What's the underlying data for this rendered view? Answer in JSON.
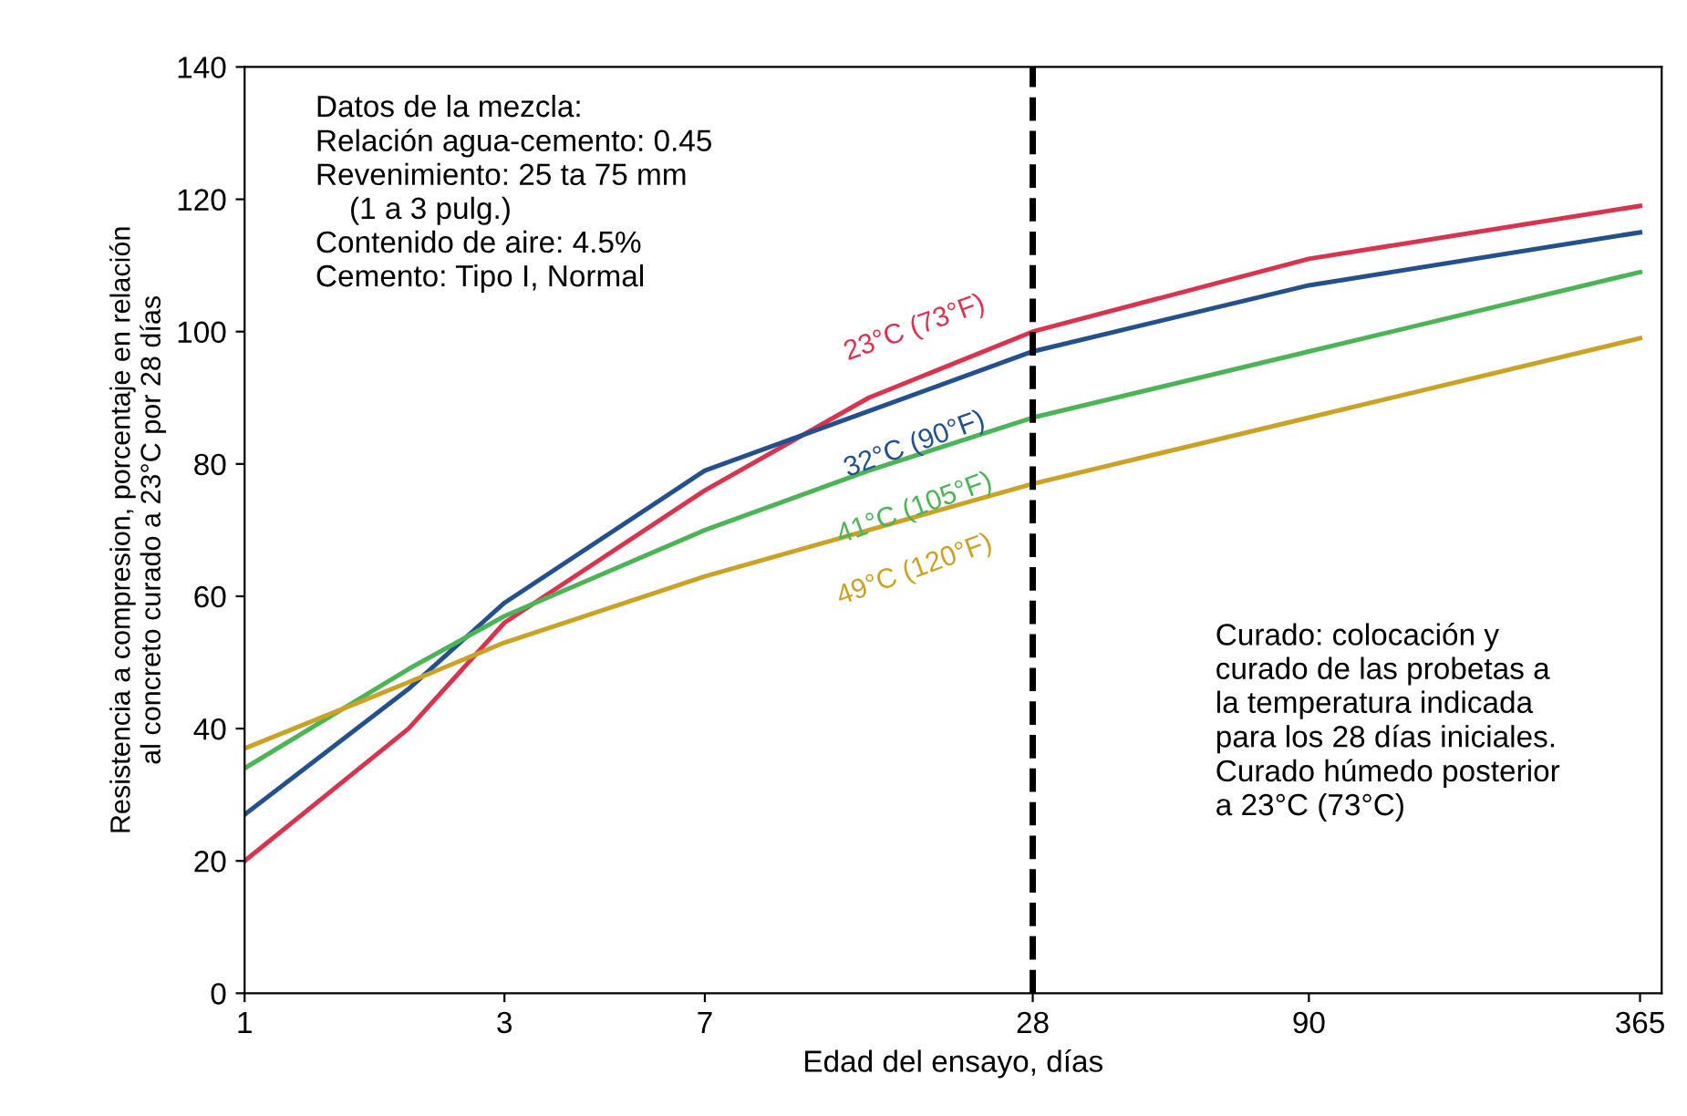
{
  "chart_data": {
    "type": "line",
    "xlabel": "Edad del ensayo, días",
    "ylabel": "Resistencia a compresion, porcentaje en relación\nal concreto curado a 23°C por 28 días",
    "x": [
      1,
      2,
      3,
      7,
      14,
      28,
      90,
      365
    ],
    "series": [
      {
        "name": "23°C (73°F)",
        "color": "#d8344f",
        "values": [
          20,
          40,
          56,
          76,
          90,
          100,
          111,
          119
        ]
      },
      {
        "name": "32°C (90°F)",
        "color": "#24508e",
        "values": [
          27,
          46,
          59,
          79,
          88,
          97,
          107,
          115
        ]
      },
      {
        "name": "41°C (105°F)",
        "color": "#4cb356",
        "values": [
          34,
          49,
          57,
          70,
          79,
          87,
          97,
          109
        ]
      },
      {
        "name": "49°C (120°F)",
        "color": "#c9a227",
        "values": [
          37,
          47,
          53,
          63,
          70,
          77,
          87,
          99
        ]
      }
    ],
    "log": "x",
    "xlim": [
      1,
      400
    ],
    "xticks": [
      1,
      3,
      7,
      28,
      90,
      365
    ],
    "ylim": [
      0,
      140
    ],
    "yticks": [
      0,
      20,
      40,
      60,
      80,
      100,
      120,
      140
    ],
    "grid": false,
    "legend": false,
    "marker": "none",
    "line_style": "solid",
    "ref_lines": [
      {
        "axis": "x",
        "value": 28,
        "label": null,
        "color": "#000000",
        "line_style": "dashed"
      }
    ],
    "annotations": [
      "Datos de la mezcla:\nRelación agua-cemento: 0.45\nRevenimiento: 25 ta 75 mm\n    (1 a 3 pulg.)\nContenido de aire: 4.5%\nCemento: Tipo I, Normal",
      "Curado: colocación y\ncurado de las probetas a\nla temperatura indicada\npara los 28 días iniciales.\nCurado húmedo posterior\na 23°C (73°C)"
    ]
  }
}
